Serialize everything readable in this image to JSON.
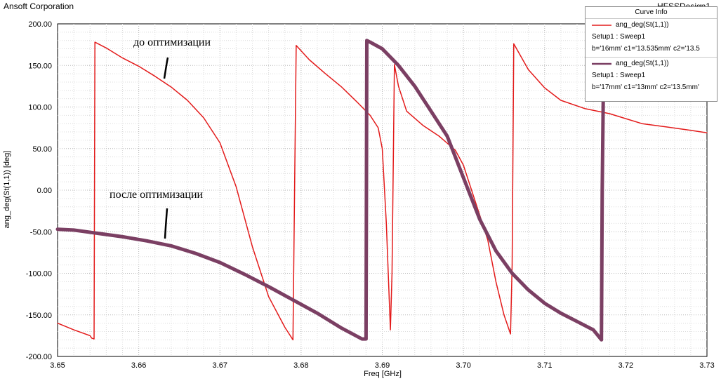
{
  "header": {
    "company": "Ansoft Corporation",
    "design_name": "HFSSDesign1"
  },
  "annotations": {
    "before": "до оптимизации",
    "after": "после оптимизации"
  },
  "legend": {
    "title": "Curve Info",
    "entries": [
      {
        "expression": "ang_deg(St(1,1))",
        "setup": "Setup1 : Sweep1",
        "params": "b='16mm' c1='13.535mm' c2='13.5",
        "color": "#e31b1b"
      },
      {
        "expression": "ang_deg(St(1,1))",
        "setup": "Setup1 : Sweep1",
        "params": "b='17mm' c1='13mm' c2='13.5mm'",
        "color": "#7b3f63"
      }
    ]
  },
  "chart_data": {
    "type": "line",
    "xlabel": "Freq [GHz]",
    "ylabel": "ang_deg(St(1,1)) [deg]",
    "xlim": [
      3.65,
      3.73
    ],
    "ylim": [
      -200,
      200
    ],
    "x_ticks": [
      "3.65",
      "3.66",
      "3.67",
      "3.68",
      "3.69",
      "3.70",
      "3.71",
      "3.72",
      "3.73"
    ],
    "y_ticks": [
      "200.00",
      "150.00",
      "100.00",
      "50.00",
      "0.00",
      "-50.00",
      "-100.00",
      "-150.00",
      "-200.00"
    ],
    "grid": true,
    "series": [
      {
        "name": "ang_deg(St(1,1)) b='16mm' c1='13.535mm' c2='13.5mm'",
        "color": "#e31b1b",
        "x": [
          3.65,
          3.652,
          3.654,
          3.6542,
          3.6545,
          3.6546,
          3.656,
          3.658,
          3.66,
          3.662,
          3.664,
          3.666,
          3.668,
          3.67,
          3.672,
          3.674,
          3.676,
          3.678,
          3.679,
          3.6792,
          3.6794,
          3.681,
          3.683,
          3.685,
          3.687,
          3.6885,
          3.6895,
          3.69,
          3.6905,
          3.691,
          3.6912,
          3.6915,
          3.692,
          3.693,
          3.695,
          3.697,
          3.699,
          3.7,
          3.701,
          3.702,
          3.703,
          3.704,
          3.705,
          3.7058,
          3.706,
          3.7062,
          3.708,
          3.71,
          3.712,
          3.715,
          3.718,
          3.72,
          3.722,
          3.725,
          3.728,
          3.73
        ],
        "y": [
          -160,
          -168,
          -175,
          -178,
          -179,
          178,
          171,
          159,
          149,
          137,
          124,
          108,
          87,
          57,
          4,
          -68,
          -128,
          -165,
          -180,
          0,
          174,
          157,
          140,
          124,
          105,
          90,
          75,
          50,
          -40,
          -168,
          -100,
          151,
          125,
          95,
          78,
          65,
          48,
          30,
          0,
          -30,
          -60,
          -110,
          -150,
          -173,
          -90,
          176,
          145,
          123,
          108,
          98,
          92,
          86,
          80,
          76,
          72,
          69
        ]
      },
      {
        "name": "ang_deg(St(1,1)) b='17mm' c1='13mm' c2='13.5mm'",
        "color": "#7b3f63",
        "x": [
          3.65,
          3.652,
          3.655,
          3.658,
          3.661,
          3.664,
          3.667,
          3.67,
          3.673,
          3.676,
          3.679,
          3.682,
          3.685,
          3.6875,
          3.688,
          3.6881,
          3.6885,
          3.69,
          3.692,
          3.694,
          3.696,
          3.698,
          3.7,
          3.702,
          3.704,
          3.706,
          3.708,
          3.71,
          3.712,
          3.714,
          3.716,
          3.717,
          3.7171,
          3.7173
        ],
        "y": [
          -47,
          -48,
          -52,
          -56,
          -61,
          -67,
          -76,
          -87,
          -101,
          -116,
          -132,
          -148,
          -166,
          -179,
          -179,
          180,
          178,
          170,
          150,
          125,
          95,
          65,
          15,
          -35,
          -73,
          -100,
          -120,
          -136,
          -148,
          -158,
          -168,
          -180,
          0,
          180
        ]
      }
    ]
  }
}
